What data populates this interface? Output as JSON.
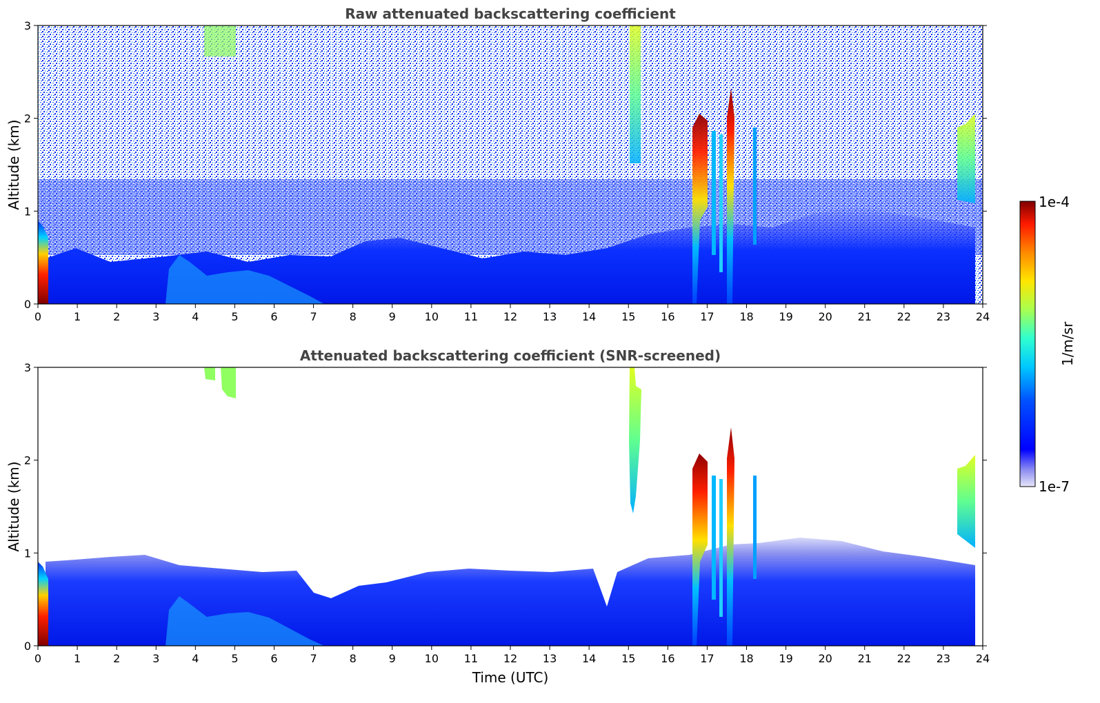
{
  "chart_data": [
    {
      "type": "heatmap",
      "title": "Raw attenuated backscattering coefficient",
      "xlabel": "",
      "ylabel": "Altitude (km)",
      "xlim": [
        0,
        24
      ],
      "ylim": [
        0,
        3
      ],
      "x_ticks": [
        "0",
        "1",
        "2",
        "3",
        "4",
        "5",
        "6",
        "7",
        "8",
        "9",
        "10",
        "11",
        "12",
        "13",
        "14",
        "15",
        "16",
        "17",
        "18",
        "19",
        "20",
        "21",
        "22",
        "23",
        "24"
      ],
      "y_ticks": [
        "0",
        "1",
        "2",
        "3"
      ],
      "features": [
        {
          "feature": "near-surface aerosol layer",
          "time_range_utc": [
            0.3,
            23.8
          ],
          "top_km": 0.45,
          "level": "low"
        },
        {
          "feature": "elevated aerosol plume",
          "time_range_utc": [
            3.3,
            7.0
          ],
          "top_km": 0.55,
          "level": "moderate"
        },
        {
          "feature": "strong return at start",
          "time_range_utc": [
            0.0,
            0.3
          ],
          "top_km": 0.8,
          "level": "high"
        },
        {
          "feature": "noisy signal aloft",
          "time_range_utc": [
            0.0,
            24.0
          ],
          "altitude_range_km": [
            0.5,
            3.0
          ],
          "level": "noise"
        },
        {
          "feature": "cloud",
          "time_range_utc": [
            15.0,
            15.4
          ],
          "altitude_range_km": [
            1.4,
            3.0
          ],
          "level": "moderate"
        },
        {
          "feature": "cloud",
          "time_range_utc": [
            16.6,
            17.0
          ],
          "altitude_range_km": [
            0.9,
            2.1
          ],
          "level": "high"
        },
        {
          "feature": "cloud",
          "time_range_utc": [
            17.5,
            17.65
          ],
          "altitude_range_km": [
            0.3,
            2.35
          ],
          "level": "high"
        },
        {
          "feature": "cloud",
          "time_range_utc": [
            23.3,
            23.8
          ],
          "altitude_range_km": [
            1.1,
            2.05
          ],
          "level": "moderate"
        }
      ]
    },
    {
      "type": "heatmap",
      "title": "Attenuated backscattering coefficient (SNR-screened)",
      "xlabel": "Time (UTC)",
      "ylabel": "Altitude (km)",
      "xlim": [
        0,
        24
      ],
      "ylim": [
        0,
        3
      ],
      "x_ticks": [
        "0",
        "1",
        "2",
        "3",
        "4",
        "5",
        "6",
        "7",
        "8",
        "9",
        "10",
        "11",
        "12",
        "13",
        "14",
        "15",
        "16",
        "17",
        "18",
        "19",
        "20",
        "21",
        "22",
        "23",
        "24"
      ],
      "y_ticks": [
        "0",
        "1",
        "2",
        "3"
      ],
      "features": [
        {
          "feature": "boundary layer",
          "time_range_utc": [
            0.3,
            23.8
          ],
          "top_km": 0.8,
          "level": "low"
        },
        {
          "feature": "elevated aerosol plume",
          "time_range_utc": [
            3.3,
            7.0
          ],
          "top_km": 0.55,
          "level": "moderate"
        },
        {
          "feature": "strong return at start",
          "time_range_utc": [
            0.0,
            0.3
          ],
          "top_km": 0.8,
          "level": "high"
        },
        {
          "feature": "high cloud",
          "time_range_utc": [
            4.2,
            5.1
          ],
          "altitude_range_km": [
            2.7,
            3.0
          ],
          "level": "moderate"
        },
        {
          "feature": "cloud",
          "time_range_utc": [
            15.0,
            15.4
          ],
          "altitude_range_km": [
            1.4,
            3.0
          ],
          "level": "moderate"
        },
        {
          "feature": "cloud",
          "time_range_utc": [
            16.6,
            17.0
          ],
          "altitude_range_km": [
            0.9,
            2.1
          ],
          "level": "high"
        },
        {
          "feature": "cloud",
          "time_range_utc": [
            17.5,
            17.65
          ],
          "altitude_range_km": [
            0.3,
            2.35
          ],
          "level": "high"
        },
        {
          "feature": "cloud",
          "time_range_utc": [
            23.3,
            23.8
          ],
          "altitude_range_km": [
            1.1,
            2.05
          ],
          "level": "moderate"
        }
      ]
    }
  ],
  "colorbar": {
    "label": "1/m/sr",
    "max_label": "1e-4",
    "min_label": "1e-7",
    "scale": "log",
    "colormap": "jet"
  }
}
